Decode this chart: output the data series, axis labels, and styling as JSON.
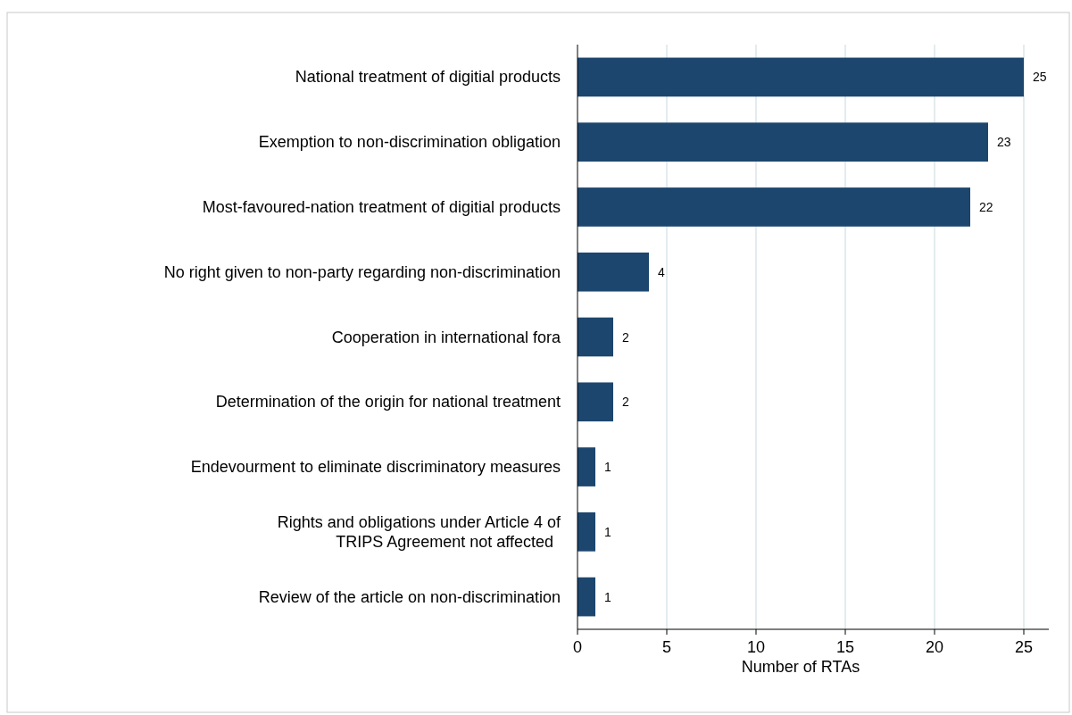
{
  "chart_data": {
    "type": "bar",
    "orientation": "horizontal",
    "xlabel": "Number of RTAs",
    "categories": [
      "National treatment of digitial products",
      "Exemption to non-discrimination obligation",
      "Most-favoured-nation treatment of digitial products",
      "No right given to non-party regarding non-discrimination",
      "Cooperation in international fora",
      "Determination of the origin for national treatment",
      "Endevourment to eliminate discriminatory measures",
      "Rights and obligations under Article 4 of TRIPS Agreement not affected",
      "Review of the article on non-discrimination"
    ],
    "values": [
      25,
      23,
      22,
      4,
      2,
      2,
      1,
      1,
      1
    ],
    "color": "#1c466e",
    "xlim": [
      0,
      26.4
    ],
    "xticks": [
      0,
      5,
      10,
      15,
      20,
      25
    ],
    "grid": "x",
    "data_labels": true
  }
}
